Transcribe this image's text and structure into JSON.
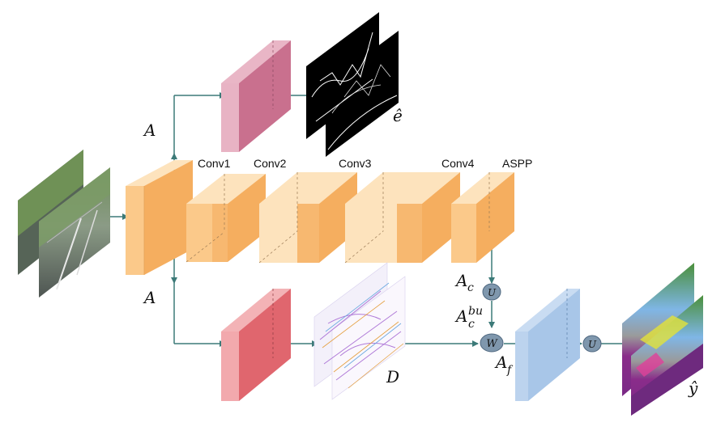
{
  "layers": {
    "conv1": "Conv1",
    "conv2": "Conv2",
    "conv3": "Conv3",
    "conv4": "Conv4",
    "aspp": "ASPP"
  },
  "symbols": {
    "a_top": "A",
    "a_bottom": "A",
    "edge_pred": "ê",
    "d": "D",
    "ac": "A",
    "ac_sub": "c",
    "acbu": "A",
    "acbu_sub": "c",
    "acbu_sup": "bu",
    "af": "A",
    "af_sub": "f",
    "y_hat": "ŷ",
    "u1": "U",
    "u2": "U",
    "w": "W"
  },
  "colors": {
    "orange_front": "#fbc98a",
    "orange_top": "#fde3bd",
    "orange_side": "#f5ae5f",
    "pink_front": "#c9708e",
    "red_front": "#e0666e",
    "blue_front": "#a8c6e8",
    "arrow": "#3c7a78"
  }
}
